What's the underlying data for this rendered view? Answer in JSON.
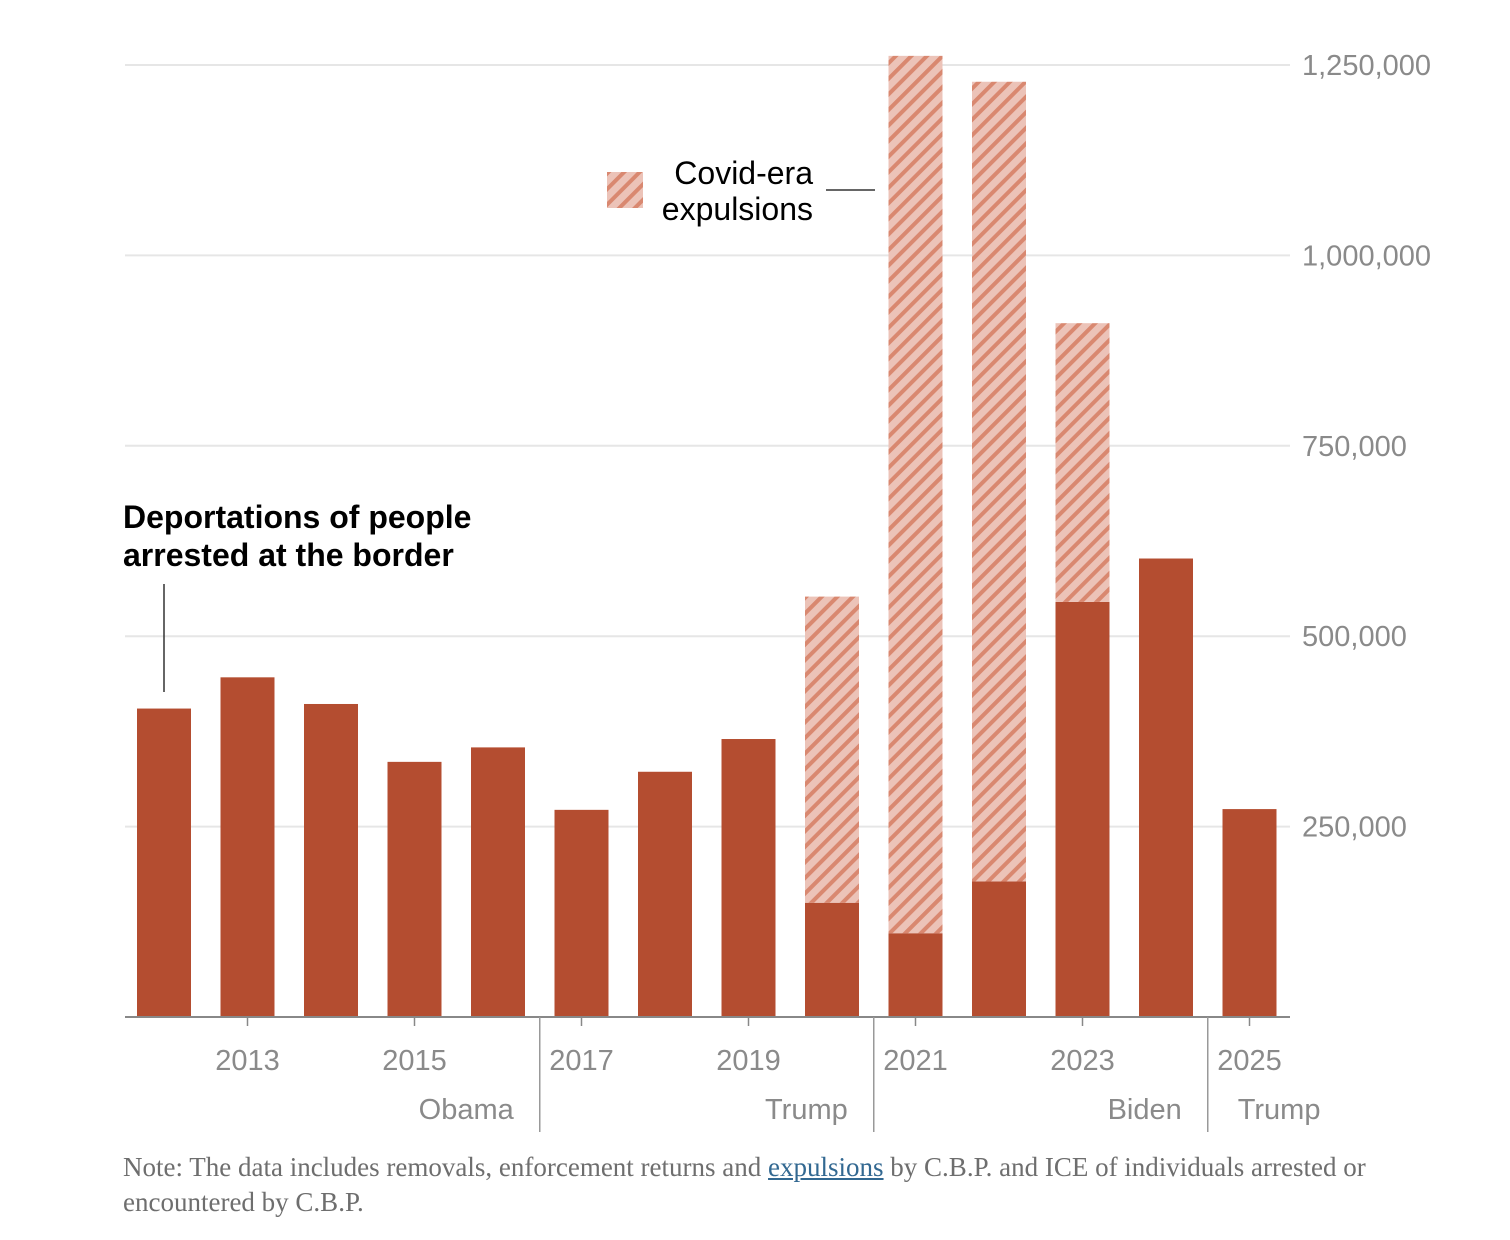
{
  "chart_data": {
    "type": "bar",
    "stacked": true,
    "years": [
      2012,
      2013,
      2014,
      2015,
      2016,
      2017,
      2018,
      2019,
      2020,
      2021,
      2022,
      2023,
      2024,
      2025
    ],
    "series": [
      {
        "name": "Deportations of people arrested at the border",
        "color": "#b44d30",
        "values": [
          405000,
          446000,
          411000,
          335000,
          354000,
          272000,
          322000,
          365000,
          150000,
          110000,
          178000,
          545000,
          602000,
          273000
        ]
      },
      {
        "name": "Covid-era expulsions",
        "color": "#e7b5a8",
        "hatch_color": "#d9876f",
        "values": [
          0,
          0,
          0,
          0,
          0,
          0,
          0,
          0,
          402000,
          1152000,
          1050000,
          366000,
          0,
          0
        ]
      }
    ],
    "ylim": [
      0,
      1250000
    ],
    "yticks": [
      250000,
      500000,
      750000,
      1000000,
      1250000
    ],
    "ytick_labels": [
      "250,000",
      "500,000",
      "750,000",
      "1,000,000",
      "1,250,000"
    ],
    "xtick_labels": [
      {
        "year": 2013,
        "label": "2013"
      },
      {
        "year": 2015,
        "label": "2015"
      },
      {
        "year": 2017,
        "label": "2017"
      },
      {
        "year": 2019,
        "label": "2019"
      },
      {
        "year": 2021,
        "label": "2021"
      },
      {
        "year": 2023,
        "label": "2023"
      },
      {
        "year": 2025,
        "label": "2025"
      }
    ],
    "administrations": [
      {
        "label": "Obama",
        "start": 2012,
        "end": 2016
      },
      {
        "label": "Trump",
        "start": 2017,
        "end": 2020
      },
      {
        "label": "Biden",
        "start": 2021,
        "end": 2024
      },
      {
        "label": "Trump",
        "start": 2025,
        "end": 2025
      }
    ],
    "annotations": {
      "deportations_line1": "Deportations of people",
      "deportations_line2": "arrested at the border",
      "covid_line1": "Covid-era",
      "covid_line2": "expulsions"
    },
    "grid": true
  },
  "note": {
    "before": "Note: The data includes removals, enforcement returns and ",
    "link": "expulsions",
    "after": " by C.B.P. and ICE of individuals arrested or encountered by C.B.P."
  }
}
